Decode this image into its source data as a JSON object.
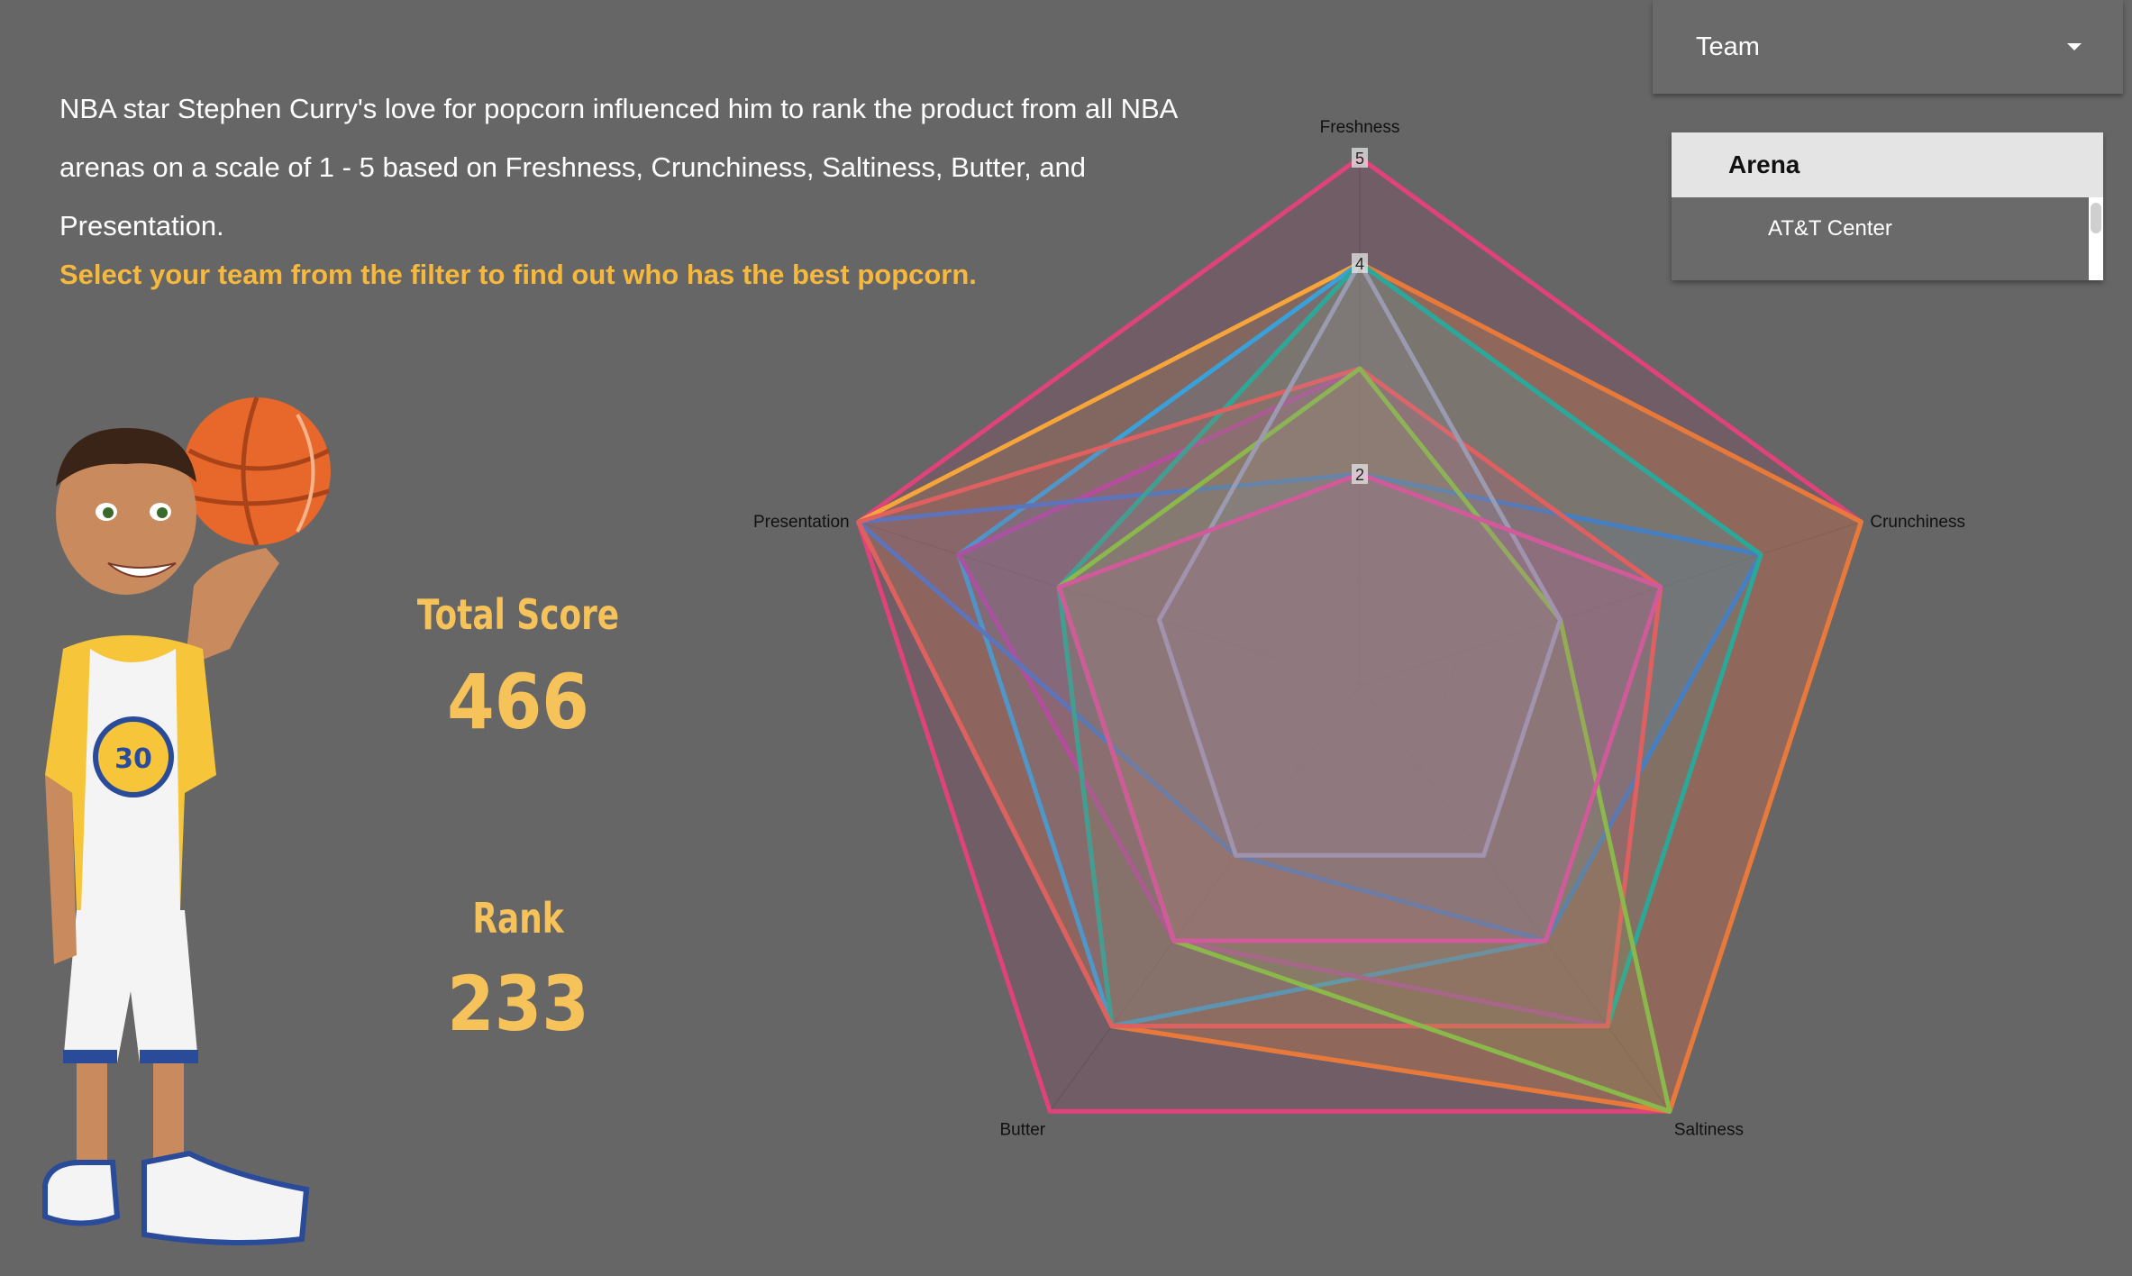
{
  "intro": {
    "paragraph": "NBA star Stephen Curry's love for popcorn influenced him to rank the product from all NBA arenas on a scale of 1 - 5 based on Freshness, Crunchiness, Saltiness, Butter, and Presentation.",
    "call_to_action": "Select your team from the filter to find out who has the best popcorn."
  },
  "filters": {
    "team": {
      "label": "Team",
      "icon": "chevron-down-icon"
    },
    "arena": {
      "header": "Arena",
      "items": [
        "AT&T Center"
      ]
    }
  },
  "stats": {
    "total_score_label": "Total Score",
    "total_score_value": "466",
    "rank_label": "Rank",
    "rank_value": "233"
  },
  "chart_data": {
    "type": "radar",
    "axes": [
      "Freshness",
      "Crunchiness",
      "Saltiness",
      "Butter",
      "Presentation"
    ],
    "range": [
      0,
      5
    ],
    "tick_labels": [
      "2",
      "4",
      "5"
    ],
    "series": [
      {
        "color": "#e0427a",
        "values": [
          5,
          5,
          5,
          5,
          5
        ]
      },
      {
        "color": "#f6a53a",
        "values": [
          4,
          5,
          5,
          4,
          5
        ]
      },
      {
        "color": "#3aa0d8",
        "values": [
          4,
          4,
          3,
          4,
          4
        ]
      },
      {
        "color": "#b04aa8",
        "values": [
          3,
          3,
          4,
          3,
          4
        ]
      },
      {
        "color": "#e8793a",
        "values": [
          4,
          5,
          5,
          4,
          3
        ]
      },
      {
        "color": "#4a78c8",
        "values": [
          2,
          4,
          3,
          2,
          5
        ]
      },
      {
        "color": "#2aa89a",
        "values": [
          4,
          4,
          4,
          4,
          3
        ]
      },
      {
        "color": "#e06060",
        "values": [
          3,
          3,
          4,
          4,
          5
        ]
      },
      {
        "color": "#8ab84a",
        "values": [
          3,
          2,
          5,
          3,
          3
        ]
      },
      {
        "color": "#9a9ab0",
        "values": [
          4,
          2,
          2,
          2,
          2
        ]
      },
      {
        "color": "#d05a9a",
        "values": [
          2,
          3,
          3,
          3,
          3
        ]
      }
    ]
  }
}
